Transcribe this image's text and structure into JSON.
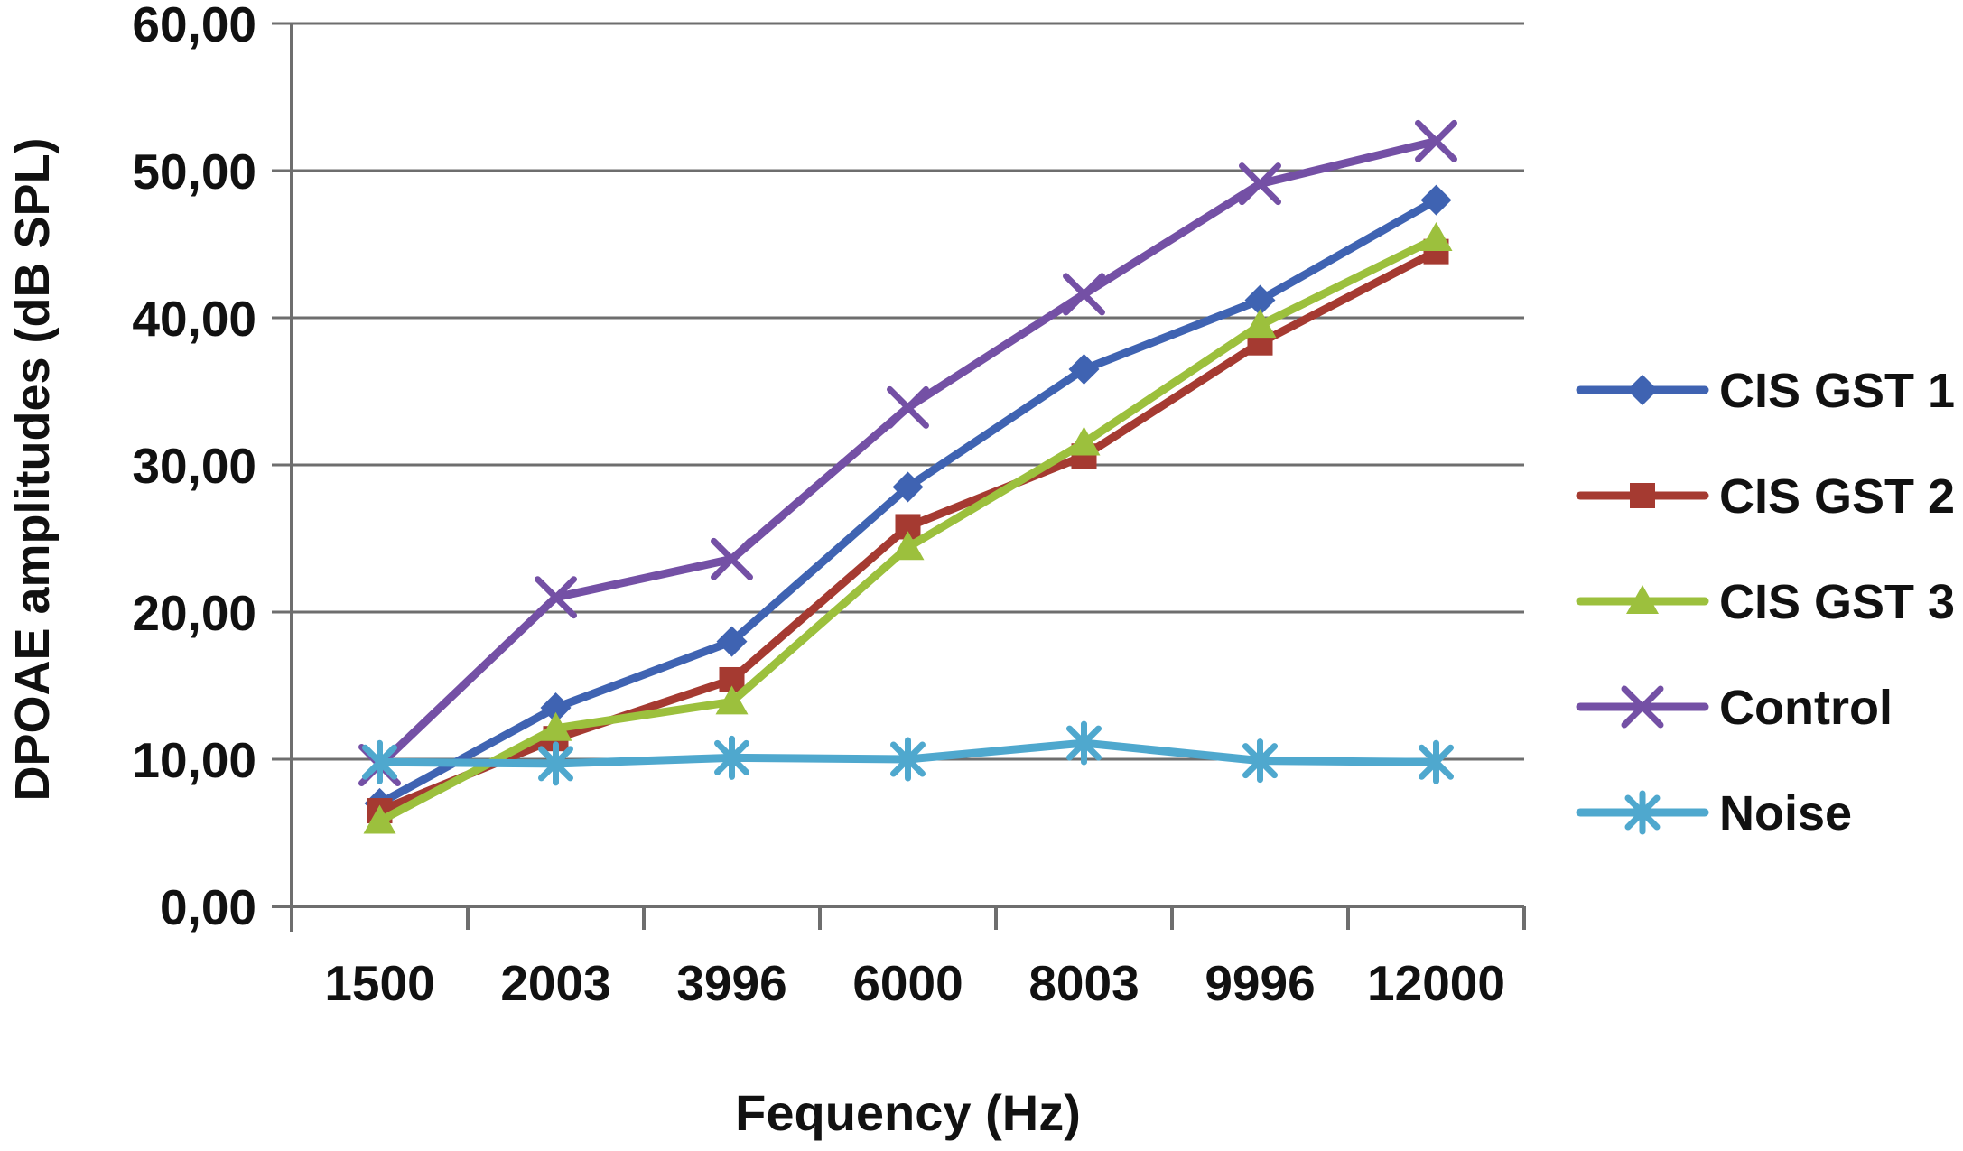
{
  "page": {
    "background": "#ffffff",
    "text_color": "#111111",
    "grid_color": "#6e6e6e",
    "axis_color": "#6e6e6e"
  },
  "chart_data": {
    "type": "line",
    "title": "",
    "xlabel": "Fequency (Hz)",
    "ylabel": "DPOAE amplitudes (dB SPL)",
    "categories": [
      1500,
      2003,
      3996,
      6000,
      8003,
      9996,
      12000
    ],
    "x_tick_labels": [
      "1500",
      "2003",
      "3996",
      "6000",
      "8003",
      "9996",
      "12000"
    ],
    "y_ticks": [
      0,
      10,
      20,
      30,
      40,
      50,
      60
    ],
    "y_tick_labels": [
      "0,00",
      "10,00",
      "20,00",
      "30,00",
      "40,00",
      "50,00",
      "60,00"
    ],
    "ylim": [
      0,
      60
    ],
    "grid": "horizontal",
    "legend_position": "right",
    "series": [
      {
        "name": "CIS GST 1",
        "color": "#3f63b2",
        "marker": "diamond",
        "values": [
          7.0,
          13.5,
          18.0,
          28.5,
          36.5,
          41.2,
          48.0
        ]
      },
      {
        "name": "CIS GST 2",
        "color": "#a53a31",
        "marker": "square",
        "values": [
          6.5,
          11.4,
          15.4,
          25.8,
          30.6,
          38.3,
          44.5
        ]
      },
      {
        "name": "CIS GST 3",
        "color": "#9cc03d",
        "marker": "triangle",
        "values": [
          5.8,
          12.1,
          13.9,
          24.4,
          31.5,
          39.5,
          45.4
        ]
      },
      {
        "name": "Control",
        "color": "#7450a5",
        "marker": "x",
        "values": [
          9.6,
          21.0,
          23.6,
          33.9,
          41.6,
          49.1,
          52.0
        ]
      },
      {
        "name": "Noise",
        "color": "#4fa8ce",
        "marker": "asterisk",
        "values": [
          9.8,
          9.7,
          10.1,
          10.0,
          11.1,
          9.9,
          9.8
        ]
      }
    ]
  }
}
